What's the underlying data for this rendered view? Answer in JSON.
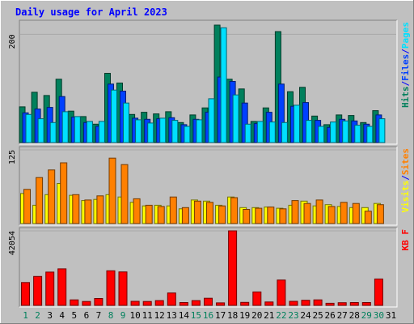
{
  "chart_data": {
    "type": "bar",
    "title": "Daily usage for April 2023",
    "categories": [
      "1",
      "2",
      "3",
      "4",
      "5",
      "6",
      "7",
      "8",
      "9",
      "10",
      "11",
      "12",
      "13",
      "14",
      "15",
      "16",
      "17",
      "18",
      "19",
      "20",
      "21",
      "22",
      "23",
      "24",
      "25",
      "26",
      "27",
      "28",
      "29",
      "30",
      "31"
    ],
    "weekend_days": [
      "1",
      "2",
      "8",
      "9",
      "15",
      "16",
      "22",
      "23",
      "29",
      "30"
    ],
    "panels": [
      {
        "id": "hits-panel",
        "scale_label": "200",
        "scale_value": 200,
        "right_labels": [
          {
            "text": "Hits",
            "color": "#00805c"
          },
          {
            "text": "/",
            "color": "#0000ff"
          },
          {
            "text": "Files",
            "color": "#0040ff"
          },
          {
            "text": "/",
            "color": "#0000ff"
          },
          {
            "text": "Pages",
            "color": "#00e0ff"
          }
        ],
        "ylim": [
          0,
          220
        ],
        "series": [
          {
            "name": "Hits",
            "color": "#00805c",
            "values": [
              66,
              93,
              87,
              117,
              58,
              48,
              34,
              128,
              110,
              52,
              56,
              53,
              57,
              37,
              51,
              64,
              217,
              117,
              99,
              39,
              64,
              205,
              94,
              102,
              49,
              33,
              51,
              50,
              37,
              59,
              0
            ]
          },
          {
            "name": "Files",
            "color": "#0040ff",
            "values": [
              55,
              62,
              65,
              85,
              47,
              37,
              30,
              108,
              95,
              45,
              43,
              44,
              46,
              33,
              43,
              56,
              121,
              113,
              73,
              35,
              56,
              108,
              67,
              74,
              41,
              28,
              43,
              40,
              34,
              51,
              0
            ]
          },
          {
            "name": "Pages",
            "color": "#00e0ff",
            "values": [
              52,
              44,
              37,
              57,
              48,
              39,
              39,
              97,
              73,
              42,
              36,
              45,
              41,
              30,
              42,
              81,
              212,
              88,
              34,
              39,
              38,
              37,
              69,
              41,
              30,
              38,
              40,
              32,
              30,
              44,
              0
            ]
          }
        ]
      },
      {
        "id": "visits-panel",
        "scale_label": "125",
        "scale_value": 125,
        "right_labels": [
          {
            "text": "Visits",
            "color": "#ffff00"
          },
          {
            "text": "/",
            "color": "#0000ff"
          },
          {
            "text": "Sites",
            "color": "#ff8000"
          }
        ],
        "ylim": [
          0,
          125
        ],
        "series": [
          {
            "name": "Visits",
            "color": "#ffff00",
            "values": [
              51,
              31,
              49,
              68,
              48,
              39,
              41,
              49,
              45,
              36,
              30,
              31,
              30,
              25,
              40,
              38,
              31,
              45,
              27,
              27,
              28,
              26,
              31,
              38,
              30,
              32,
              29,
              27,
              27,
              34,
              0
            ]
          },
          {
            "name": "Sites",
            "color": "#ff8000",
            "values": [
              58,
              78,
              91,
              103,
              49,
              40,
              47,
              111,
              100,
              42,
              31,
              29,
              45,
              27,
              38,
              36,
              30,
              44,
              24,
              26,
              28,
              25,
              39,
              34,
              40,
              29,
              36,
              34,
              21,
              32,
              0
            ]
          }
        ]
      },
      {
        "id": "kbytes-panel",
        "scale_label": "42054",
        "scale_value": 42054,
        "right_labels": [
          {
            "text": "KB F",
            "color": "#ff0000"
          }
        ],
        "ylim": [
          0,
          42054
        ],
        "series": [
          {
            "name": "KB F",
            "color": "#ff0000",
            "values": [
              12900,
              16300,
              18800,
              20600,
              3100,
              2200,
              3900,
              19500,
              18900,
              2300,
              2200,
              2700,
              7000,
              1600,
              2700,
              4000,
              1400,
              42054,
              1700,
              7600,
              1900,
              14300,
              2300,
              2900,
              3100,
              1200,
              1500,
              1600,
              1600,
              14900,
              0
            ]
          }
        ]
      }
    ]
  },
  "colors": {
    "background": "#c0c0c0",
    "title": "#0000ff",
    "weekend_label": "#00805c",
    "weekday_label": "#000000"
  }
}
